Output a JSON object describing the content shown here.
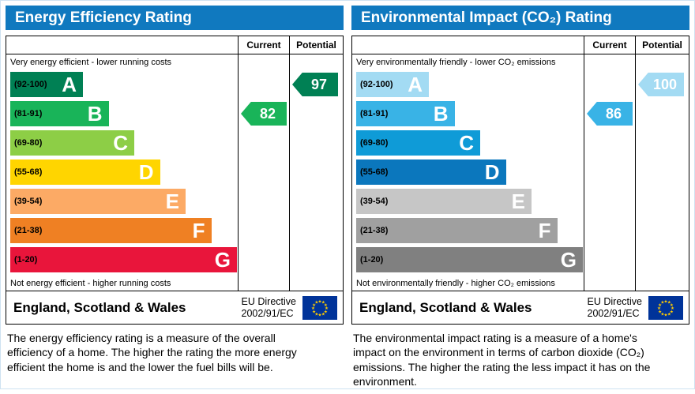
{
  "panels": [
    {
      "title": "Energy Efficiency Rating",
      "columns": {
        "current": "Current",
        "potential": "Potential"
      },
      "top_caption": "Very energy efficient - lower running costs",
      "bottom_caption": "Not energy efficient - higher running costs",
      "bands": [
        {
          "letter": "A",
          "range": "(92-100)",
          "color": "#008054"
        },
        {
          "letter": "B",
          "range": "(81-91)",
          "color": "#19b459"
        },
        {
          "letter": "C",
          "range": "(69-80)",
          "color": "#8dce46"
        },
        {
          "letter": "D",
          "range": "(55-68)",
          "color": "#ffd500"
        },
        {
          "letter": "E",
          "range": "(39-54)",
          "color": "#fcaa65"
        },
        {
          "letter": "F",
          "range": "(21-38)",
          "color": "#ef8023"
        },
        {
          "letter": "G",
          "range": "(1-20)",
          "color": "#e9153b"
        }
      ],
      "current": {
        "value": "82",
        "band_index": 1,
        "color": "#19b459",
        "text_color": "#ffffff"
      },
      "potential": {
        "value": "97",
        "band_index": 0,
        "color": "#008054",
        "text_color": "#ffffff"
      },
      "footer": {
        "region": "England, Scotland & Wales",
        "directive_line1": "EU Directive",
        "directive_line2": "2002/91/EC"
      },
      "description": "The energy efficiency rating is a measure of the overall efficiency of a home. The higher the rating the more energy efficient the home is and the lower the fuel bills will be."
    },
    {
      "title": "Environmental Impact (CO₂) Rating",
      "columns": {
        "current": "Current",
        "potential": "Potential"
      },
      "top_caption": "Very environmentally friendly - lower CO₂ emissions",
      "bottom_caption": "Not environmentally friendly - higher CO₂ emissions",
      "bands": [
        {
          "letter": "A",
          "range": "(92-100)",
          "color": "#a3dbf3"
        },
        {
          "letter": "B",
          "range": "(81-91)",
          "color": "#39b3e6"
        },
        {
          "letter": "C",
          "range": "(69-80)",
          "color": "#0f9bd7"
        },
        {
          "letter": "D",
          "range": "(55-68)",
          "color": "#0b77bd"
        },
        {
          "letter": "E",
          "range": "(39-54)",
          "color": "#c6c6c6"
        },
        {
          "letter": "F",
          "range": "(21-38)",
          "color": "#a0a0a0"
        },
        {
          "letter": "G",
          "range": "(1-20)",
          "color": "#808080"
        }
      ],
      "current": {
        "value": "86",
        "band_index": 1,
        "color": "#39b3e6",
        "text_color": "#ffffff"
      },
      "potential": {
        "value": "100",
        "band_index": 0,
        "color": "#a3dbf3",
        "text_color": "#ffffff"
      },
      "footer": {
        "region": "England, Scotland & Wales",
        "directive_line1": "EU Directive",
        "directive_line2": "2002/91/EC"
      },
      "description": "The environmental impact rating is a measure of a home's impact on the environment in terms of carbon dioxide (CO₂) emissions. The higher the rating the less impact it has on the environment."
    }
  ],
  "chart_data": [
    {
      "type": "bar",
      "title": "Energy Efficiency Rating",
      "categories": [
        "A (92-100)",
        "B (81-91)",
        "C (69-80)",
        "D (55-68)",
        "E (39-54)",
        "F (21-38)",
        "G (1-20)"
      ],
      "series": [
        {
          "name": "Current",
          "values": [
            82
          ],
          "band": "B"
        },
        {
          "name": "Potential",
          "values": [
            97
          ],
          "band": "A"
        }
      ],
      "xlim": [
        1,
        100
      ],
      "footer": "England, Scotland & Wales — EU Directive 2002/91/EC"
    },
    {
      "type": "bar",
      "title": "Environmental Impact (CO₂) Rating",
      "categories": [
        "A (92-100)",
        "B (81-91)",
        "C (69-80)",
        "D (55-68)",
        "E (39-54)",
        "F (21-38)",
        "G (1-20)"
      ],
      "series": [
        {
          "name": "Current",
          "values": [
            86
          ],
          "band": "B"
        },
        {
          "name": "Potential",
          "values": [
            100
          ],
          "band": "A"
        }
      ],
      "xlim": [
        1,
        100
      ],
      "footer": "England, Scotland & Wales — EU Directive 2002/91/EC"
    }
  ]
}
